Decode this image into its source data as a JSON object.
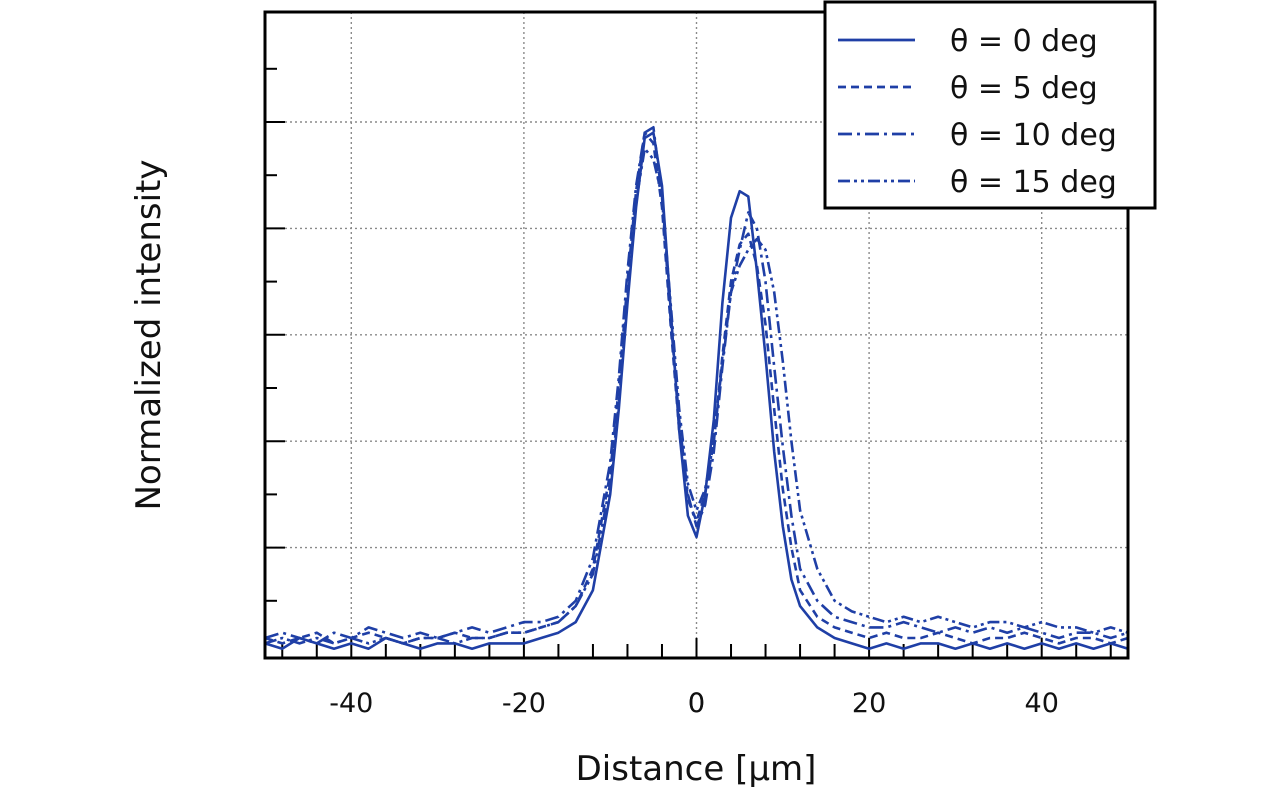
{
  "chart_data": {
    "type": "line",
    "xlabel": "Distance [µm]",
    "ylabel": "Normalized intensity",
    "xlim": [
      -50,
      50
    ],
    "ylim": [
      0,
      1.2
    ],
    "xticks": [
      -40,
      -20,
      0,
      20,
      40
    ],
    "xtick_labels": [
      "-40",
      "-20",
      "0",
      "20",
      "40"
    ],
    "grid": true,
    "legend_position": "top-right",
    "line_color": "#1f3fa6",
    "x": [
      -50,
      -48,
      -46,
      -44,
      -42,
      -40,
      -38,
      -36,
      -34,
      -32,
      -30,
      -28,
      -26,
      -24,
      -22,
      -20,
      -18,
      -16,
      -14,
      -12,
      -10,
      -9,
      -8,
      -7,
      -6,
      -5,
      -4,
      -3,
      -2,
      -1,
      0,
      1,
      2,
      3,
      4,
      5,
      6,
      7,
      8,
      9,
      10,
      11,
      12,
      14,
      16,
      18,
      20,
      22,
      24,
      26,
      28,
      30,
      32,
      34,
      36,
      38,
      40,
      42,
      44,
      46,
      48,
      50
    ],
    "series": [
      {
        "name": "θ = 0 deg",
        "dash": "solid",
        "values": [
          0.02,
          0.01,
          0.03,
          0.02,
          0.01,
          0.02,
          0.01,
          0.03,
          0.02,
          0.01,
          0.02,
          0.02,
          0.01,
          0.02,
          0.02,
          0.02,
          0.03,
          0.04,
          0.06,
          0.12,
          0.3,
          0.46,
          0.66,
          0.84,
          0.97,
          0.98,
          0.88,
          0.65,
          0.42,
          0.26,
          0.22,
          0.3,
          0.44,
          0.66,
          0.82,
          0.87,
          0.86,
          0.72,
          0.56,
          0.38,
          0.24,
          0.14,
          0.09,
          0.05,
          0.03,
          0.02,
          0.01,
          0.02,
          0.01,
          0.02,
          0.02,
          0.01,
          0.02,
          0.01,
          0.02,
          0.01,
          0.02,
          0.01,
          0.02,
          0.01,
          0.02,
          0.01
        ]
      },
      {
        "name": "θ = 5 deg",
        "dash": "dashed",
        "values": [
          0.03,
          0.02,
          0.03,
          0.04,
          0.02,
          0.03,
          0.04,
          0.03,
          0.02,
          0.03,
          0.03,
          0.04,
          0.03,
          0.03,
          0.04,
          0.04,
          0.05,
          0.06,
          0.09,
          0.16,
          0.34,
          0.5,
          0.7,
          0.87,
          0.98,
          0.96,
          0.84,
          0.62,
          0.42,
          0.29,
          0.25,
          0.3,
          0.4,
          0.56,
          0.7,
          0.77,
          0.79,
          0.73,
          0.62,
          0.46,
          0.31,
          0.2,
          0.12,
          0.07,
          0.05,
          0.04,
          0.03,
          0.04,
          0.03,
          0.03,
          0.04,
          0.03,
          0.02,
          0.03,
          0.03,
          0.04,
          0.03,
          0.02,
          0.03,
          0.03,
          0.02,
          0.03
        ]
      },
      {
        "name": "θ = 10 deg",
        "dash": "dashdot",
        "values": [
          0.03,
          0.04,
          0.03,
          0.02,
          0.04,
          0.03,
          0.05,
          0.04,
          0.03,
          0.04,
          0.03,
          0.04,
          0.05,
          0.04,
          0.05,
          0.06,
          0.06,
          0.07,
          0.1,
          0.18,
          0.36,
          0.52,
          0.72,
          0.88,
          0.98,
          0.99,
          0.86,
          0.63,
          0.44,
          0.3,
          0.24,
          0.28,
          0.38,
          0.54,
          0.68,
          0.76,
          0.83,
          0.8,
          0.7,
          0.54,
          0.39,
          0.26,
          0.16,
          0.1,
          0.07,
          0.06,
          0.05,
          0.05,
          0.06,
          0.05,
          0.04,
          0.05,
          0.04,
          0.05,
          0.04,
          0.05,
          0.04,
          0.03,
          0.04,
          0.04,
          0.03,
          0.04
        ]
      },
      {
        "name": "θ = 15 deg",
        "dash": "dashdotdot",
        "values": [
          0.02,
          0.03,
          0.02,
          0.03,
          0.02,
          0.03,
          0.02,
          0.03,
          0.02,
          0.03,
          0.03,
          0.02,
          0.03,
          0.03,
          0.04,
          0.04,
          0.05,
          0.06,
          0.09,
          0.15,
          0.32,
          0.47,
          0.67,
          0.85,
          0.95,
          0.93,
          0.86,
          0.66,
          0.46,
          0.32,
          0.27,
          0.31,
          0.4,
          0.55,
          0.68,
          0.73,
          0.76,
          0.78,
          0.76,
          0.68,
          0.55,
          0.4,
          0.27,
          0.16,
          0.1,
          0.08,
          0.07,
          0.06,
          0.07,
          0.06,
          0.07,
          0.06,
          0.05,
          0.06,
          0.06,
          0.05,
          0.06,
          0.05,
          0.05,
          0.04,
          0.05,
          0.04
        ]
      }
    ]
  }
}
